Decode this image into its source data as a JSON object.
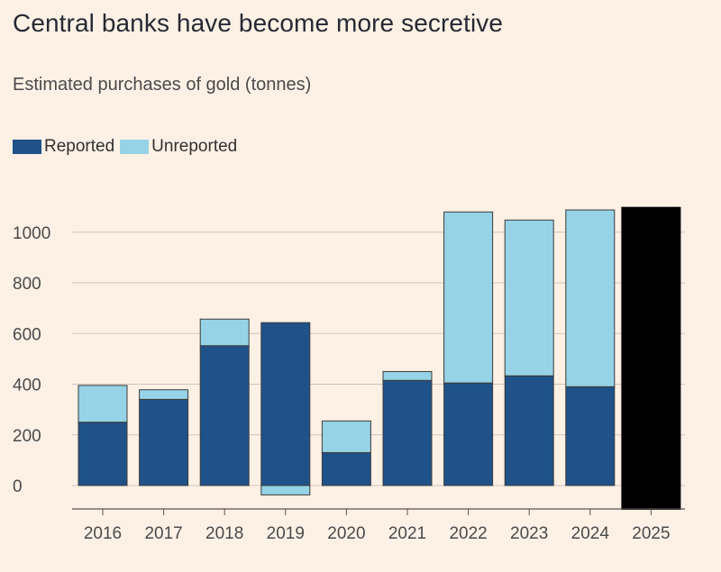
{
  "title": "Central banks have become more secretive",
  "subtitle": "Estimated purchases of gold (tonnes)",
  "colors": {
    "reported": "#1f5289",
    "unreported": "#96d3e6",
    "redacted": "#000000",
    "grid": "#cfc5bd",
    "background": "#fdf1e6"
  },
  "chart_data": {
    "type": "bar",
    "stacked": true,
    "categories": [
      "2016",
      "2017",
      "2018",
      "2019",
      "2020",
      "2021",
      "2022",
      "2023",
      "2024",
      "2025"
    ],
    "series": [
      {
        "name": "Reported",
        "values": [
          250,
          340,
          552,
          643,
          130,
          415,
          405,
          433,
          390,
          null
        ]
      },
      {
        "name": "Unreported",
        "values": [
          145,
          38,
          105,
          -37,
          125,
          35,
          675,
          615,
          698,
          null
        ]
      }
    ],
    "obscured_values": {
      "2025": 1100
    },
    "yticks": [
      0,
      200,
      400,
      600,
      800,
      1000
    ],
    "ylim": [
      -100,
      1150
    ],
    "grid": true,
    "legend": "top-left"
  }
}
